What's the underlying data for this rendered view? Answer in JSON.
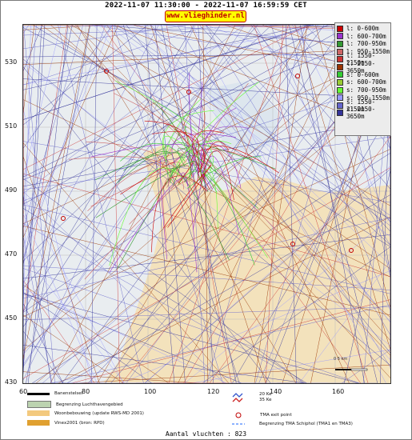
{
  "header": {
    "title": "2022-11-07 11:30:00 - 2022-11-07 16:59:59 CET",
    "brand": "www.vlieghinder.nl"
  },
  "axes": {
    "y_ticks": [
      "530",
      "510",
      "490",
      "470",
      "450",
      "430"
    ],
    "x_ticks": [
      "60",
      "80",
      "100",
      "120",
      "140",
      "160"
    ]
  },
  "legend": [
    {
      "label": "l: 0-600m",
      "color": "#cc0000"
    },
    {
      "label": "l: 600-700m",
      "color": "#9933cc"
    },
    {
      "label": "l: 700-950m",
      "color": "#339933"
    },
    {
      "label": "l: 950-1550m",
      "color": "#cc6666"
    },
    {
      "label": "l: 1550-2150m",
      "color": "#cc3333"
    },
    {
      "label": "l: 2150-3650m",
      "color": "#993300"
    },
    {
      "label": "s: 0-600m",
      "color": "#33cc33"
    },
    {
      "label": "s: 600-700m",
      "color": "#99cc33"
    },
    {
      "label": "s: 700-950m",
      "color": "#66ff33"
    },
    {
      "label": "s: 950-1550m",
      "color": "#9999ff"
    },
    {
      "label": "s: 1550-2150m",
      "color": "#6666cc"
    },
    {
      "label": "s: 2150-3650m",
      "color": "#333399"
    }
  ],
  "bottom_legend": {
    "runway": "Banenstelsel",
    "airport_boundary": "Begrenzing Luchthavengebied",
    "housing": "Woonbebouwing (update RWS-MD 2001)",
    "vinex": "Vinex2001 (bron: RPD)",
    "noise_contour_1": "20 Ke",
    "noise_contour_2": "35 Ke",
    "tma_exit": "TMA exit point",
    "tma_boundary": "Begrenzing TMA Schiphol  (TMA1 en TMA3)"
  },
  "scale_label": "0      5 km",
  "footer": {
    "count": "Aantal vluchten : 823"
  },
  "colors": {
    "land": "#f3e0b8",
    "water": "#e8ecef",
    "grid": "#bbbbbb",
    "brand_bg": "#ffff00",
    "brand_text": "#c00000"
  }
}
